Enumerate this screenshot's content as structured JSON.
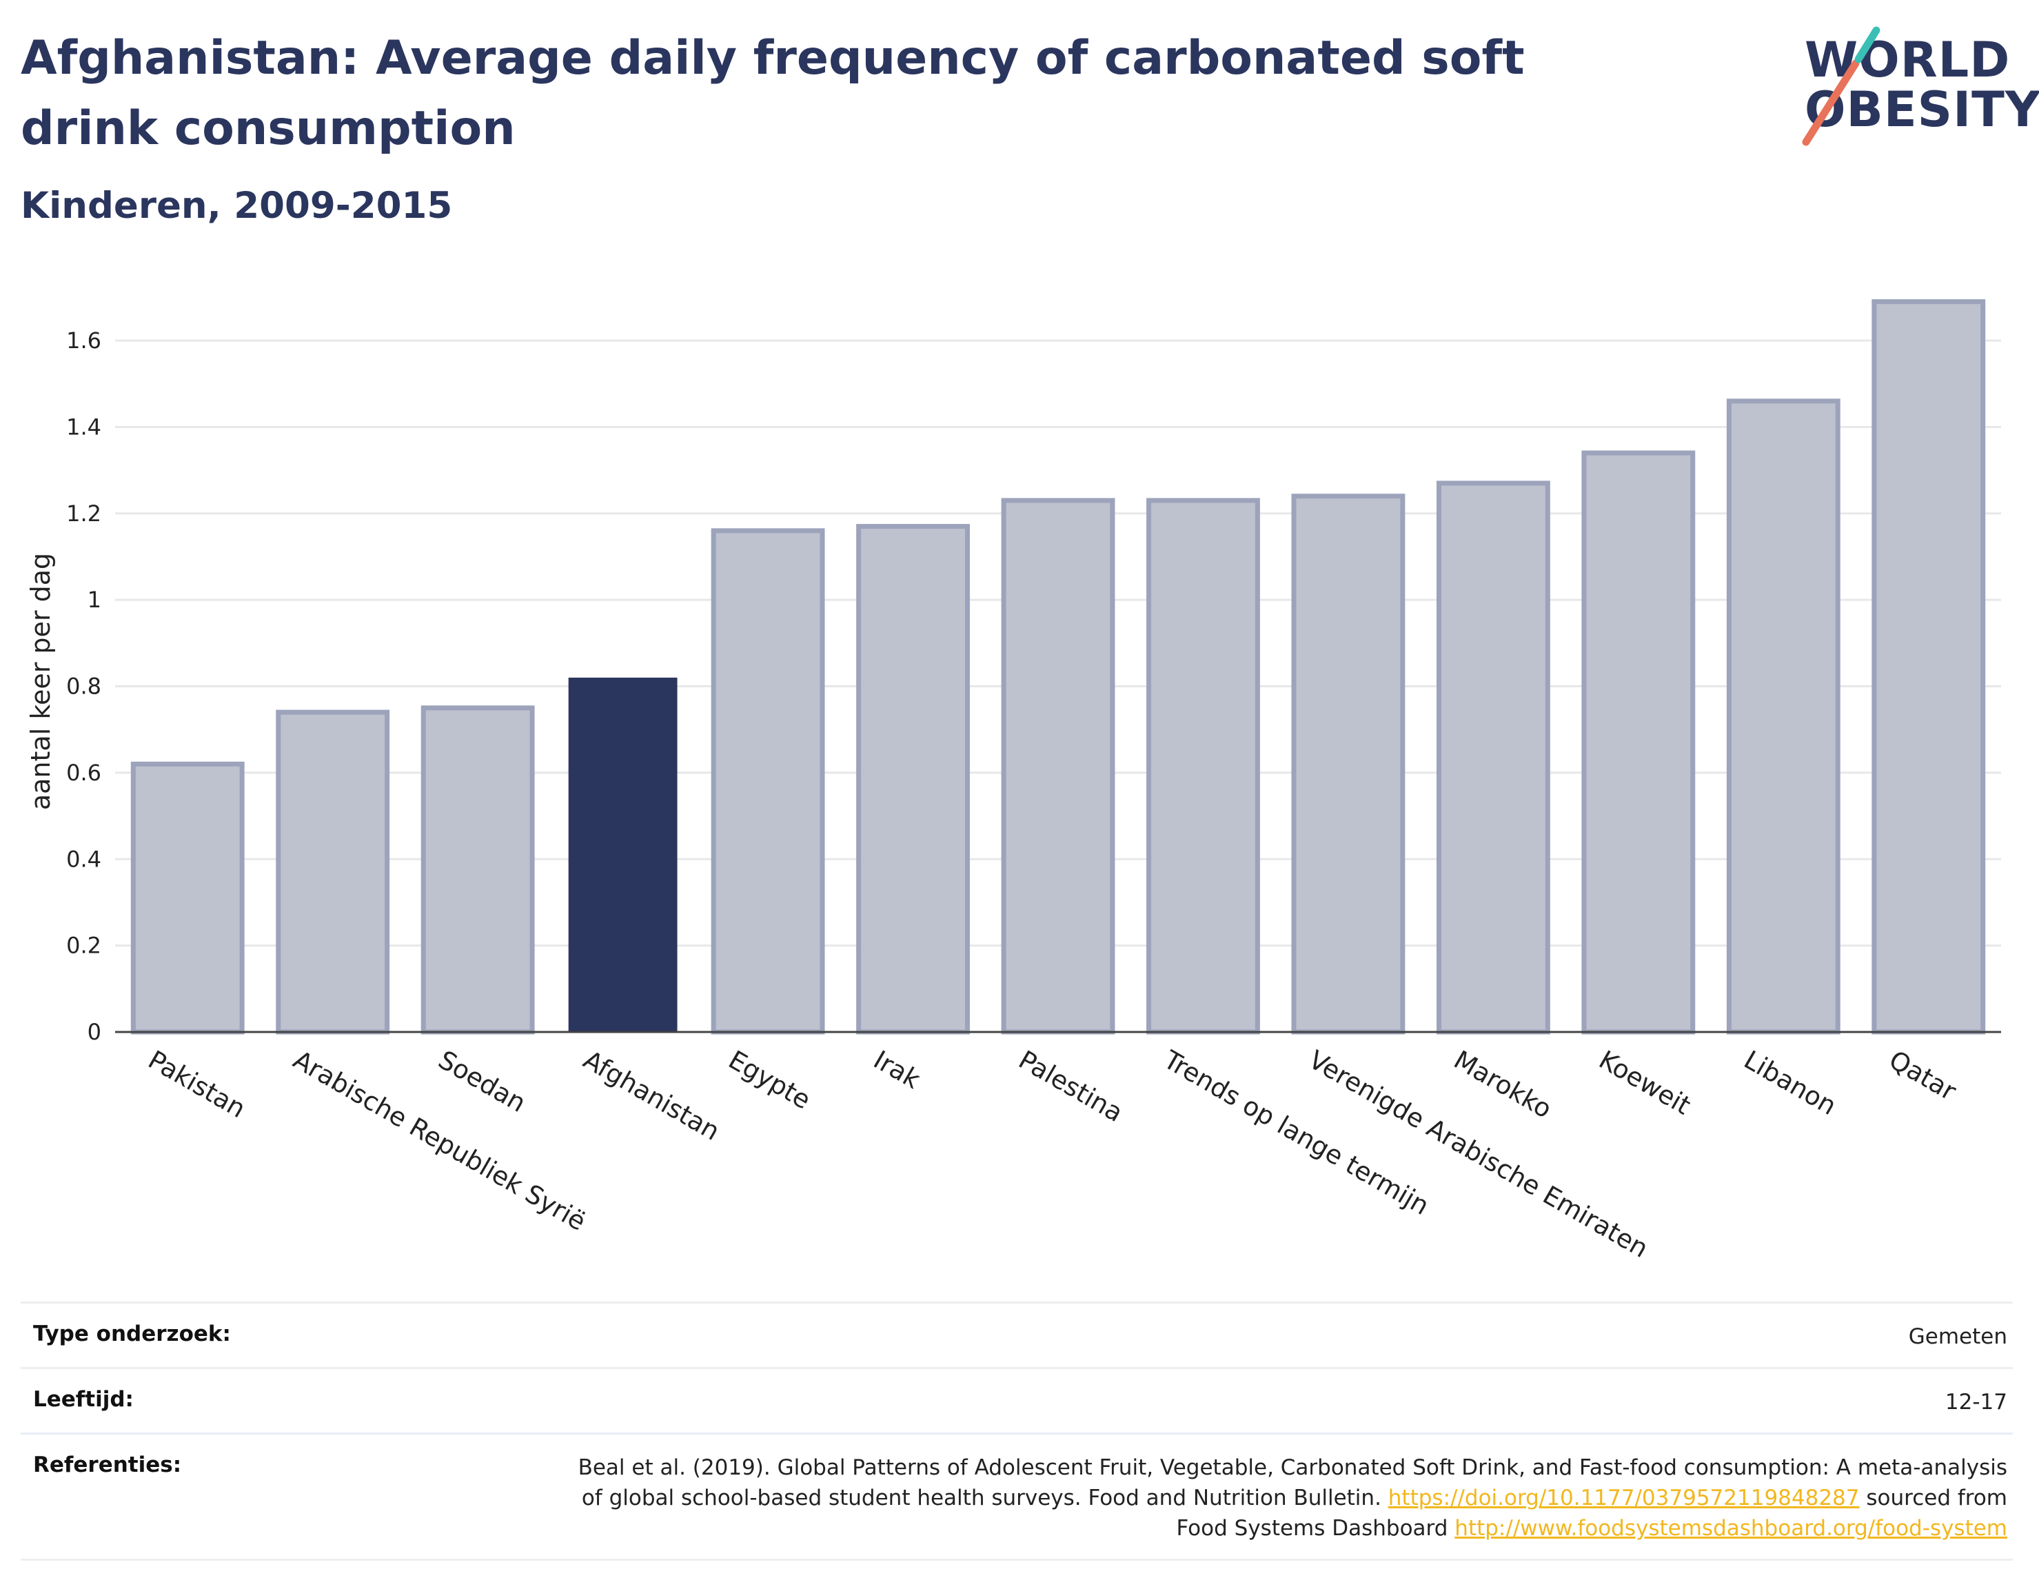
{
  "title": "Afghanistan: Average daily frequency of carbonated soft drink consumption",
  "subtitle": "Kinderen, 2009-2015",
  "logo": {
    "line1": "WORLD",
    "line2": "OBESITY"
  },
  "colors": {
    "highlight": "#2b365e",
    "bar": "#bec1ce",
    "bar_border": "#9ca3bb",
    "link": "#f2b71e"
  },
  "chart_data": {
    "type": "bar",
    "categories": [
      "Pakistan",
      "Arabische Republiek Syrië",
      "Soedan",
      "Afghanistan",
      "Egypte",
      "Irak",
      "Palestina",
      "Trends op lange termijn",
      "Verenigde Arabische Emiraten",
      "Marokko",
      "Koeweit",
      "Libanon",
      "Qatar"
    ],
    "values": [
      0.62,
      0.74,
      0.75,
      0.82,
      1.16,
      1.17,
      1.23,
      1.23,
      1.24,
      1.27,
      1.34,
      1.46,
      1.69
    ],
    "highlight": "Afghanistan",
    "ylabel": "aantal keer per dag",
    "yticks": [
      0,
      0.2,
      0.4,
      0.6,
      0.8,
      1,
      1.2,
      1.4,
      1.6
    ],
    "ytick_labels": [
      "0",
      "0.2",
      "0.4",
      "0.6",
      "0.8",
      "1",
      "1.2",
      "1.4",
      "1.6"
    ],
    "ylim": [
      0,
      1.75
    ],
    "grid": true
  },
  "table": {
    "rows": [
      {
        "label": "Type onderzoek:",
        "value": "Gemeten"
      },
      {
        "label": "Leeftijd:",
        "value": "12-17"
      }
    ],
    "references": {
      "label": "Referenties:",
      "text1": "Beal et al. (2019). Global Patterns of Adolescent Fruit, Vegetable, Carbonated Soft Drink, and Fast-food consumption: A meta-analysis of global school-based student health surveys. Food and Nutrition Bulletin.",
      "link1": "https://doi.org/10.1177/0379572119848287",
      "text2": "sourced from Food Systems Dashboard",
      "link2": "http://www.foodsystemsdashboard.org/food-system"
    }
  }
}
